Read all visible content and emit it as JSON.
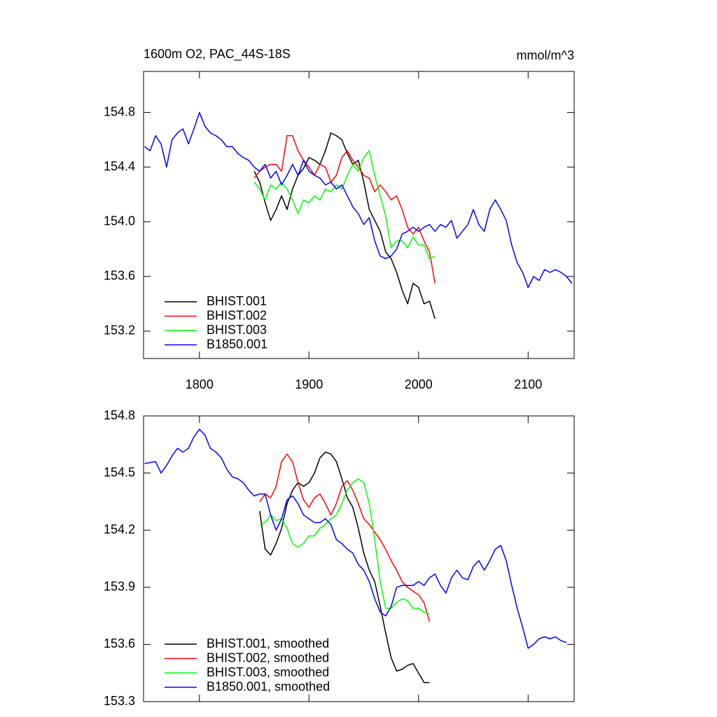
{
  "chart_data": [
    {
      "type": "line",
      "title": "1600m O2, PAC_44S-18S",
      "subtitle": "mmol/m^3",
      "xlim": [
        1749,
        2142
      ],
      "xticks": [
        1800,
        1900,
        2000,
        2100
      ],
      "ylim": [
        153.0,
        155.1
      ],
      "yticks": [
        153.2,
        153.6,
        {
          "value": 154,
          "label": "154.0"
        },
        154.4,
        154.8
      ],
      "legend": "lower left",
      "series": [
        {
          "name": "BHIST.001",
          "color": "#000000",
          "x": [
            1850,
            1855,
            1860,
            1865,
            1870,
            1875,
            1880,
            1885,
            1890,
            1895,
            1900,
            1905,
            1910,
            1915,
            1920,
            1925,
            1930,
            1935,
            1940,
            1945,
            1950,
            1955,
            1960,
            1965,
            1970,
            1975,
            1980,
            1985,
            1990,
            1995,
            2000,
            2005,
            2010,
            2015
          ],
          "values": [
            154.37,
            154.29,
            154.14,
            154.01,
            154.09,
            154.19,
            154.09,
            154.24,
            154.34,
            154.39,
            154.47,
            154.45,
            154.42,
            154.52,
            154.65,
            154.63,
            154.6,
            154.5,
            154.42,
            154.45,
            154.29,
            154.09,
            154.01,
            153.93,
            153.78,
            153.73,
            153.63,
            153.5,
            153.4,
            153.55,
            153.52,
            153.4,
            153.42,
            153.29
          ]
        },
        {
          "name": "BHIST.002",
          "color": "#ff0000",
          "x": [
            1850,
            1855,
            1860,
            1865,
            1870,
            1875,
            1880,
            1885,
            1890,
            1895,
            1900,
            1905,
            1910,
            1915,
            1920,
            1925,
            1930,
            1935,
            1940,
            1945,
            1950,
            1955,
            1960,
            1965,
            1970,
            1975,
            1980,
            1985,
            1990,
            1995,
            2000,
            2005,
            2010,
            2015
          ],
          "values": [
            154.32,
            154.37,
            154.4,
            154.42,
            154.42,
            154.37,
            154.63,
            154.63,
            154.52,
            154.45,
            154.4,
            154.34,
            154.42,
            154.4,
            154.29,
            154.34,
            154.47,
            154.52,
            154.45,
            154.4,
            154.34,
            154.32,
            154.22,
            154.27,
            154.22,
            154.16,
            154.19,
            154.09,
            153.96,
            153.91,
            153.96,
            153.86,
            153.78,
            153.55
          ]
        },
        {
          "name": "BHIST.003",
          "color": "#00ff00",
          "x": [
            1850,
            1855,
            1860,
            1865,
            1870,
            1875,
            1880,
            1885,
            1890,
            1895,
            1900,
            1905,
            1910,
            1915,
            1920,
            1925,
            1930,
            1935,
            1940,
            1945,
            1950,
            1955,
            1960,
            1965,
            1970,
            1975,
            1980,
            1985,
            1990,
            1995,
            2000,
            2005,
            2010,
            2015
          ],
          "values": [
            154.29,
            154.24,
            154.16,
            154.27,
            154.24,
            154.29,
            154.24,
            154.16,
            154.06,
            154.16,
            154.14,
            154.19,
            154.16,
            154.24,
            154.22,
            154.27,
            154.24,
            154.34,
            154.42,
            154.37,
            154.47,
            154.52,
            154.34,
            154.19,
            154.04,
            153.81,
            153.86,
            153.86,
            153.81,
            153.89,
            153.83,
            153.83,
            153.73,
            153.75
          ]
        },
        {
          "name": "B1850.001",
          "color": "#0000ff",
          "x": [
            1750,
            1755,
            1760,
            1765,
            1770,
            1775,
            1780,
            1785,
            1790,
            1795,
            1800,
            1805,
            1810,
            1815,
            1820,
            1825,
            1830,
            1835,
            1840,
            1845,
            1850,
            1855,
            1860,
            1865,
            1870,
            1875,
            1880,
            1885,
            1890,
            1895,
            1900,
            1905,
            1910,
            1915,
            1920,
            1925,
            1930,
            1935,
            1940,
            1945,
            1950,
            1955,
            1960,
            1965,
            1970,
            1975,
            1980,
            1985,
            1990,
            1995,
            2000,
            2005,
            2010,
            2015,
            2020,
            2025,
            2030,
            2035,
            2040,
            2045,
            2050,
            2055,
            2060,
            2065,
            2070,
            2075,
            2080,
            2085,
            2090,
            2095,
            2100,
            2105,
            2110,
            2115,
            2120,
            2125,
            2130,
            2135,
            2140
          ],
          "values": [
            154.55,
            154.52,
            154.63,
            154.57,
            154.4,
            154.6,
            154.65,
            154.68,
            154.57,
            154.68,
            154.8,
            154.7,
            154.65,
            154.63,
            154.6,
            154.55,
            154.55,
            154.5,
            154.47,
            154.45,
            154.4,
            154.37,
            154.42,
            154.32,
            154.37,
            154.27,
            154.34,
            154.42,
            154.34,
            154.45,
            154.37,
            154.34,
            154.32,
            154.27,
            154.29,
            154.24,
            154.27,
            154.19,
            154.11,
            154.06,
            153.98,
            154.03,
            153.86,
            153.75,
            153.73,
            153.75,
            153.8,
            153.91,
            153.93,
            153.96,
            153.93,
            153.96,
            153.98,
            153.93,
            153.98,
            153.96,
            154.01,
            153.88,
            153.93,
            153.98,
            154.09,
            153.98,
            153.93,
            154.09,
            154.16,
            154.09,
            154.01,
            153.83,
            153.7,
            153.63,
            153.52,
            153.6,
            153.57,
            153.65,
            153.63,
            153.65,
            153.63,
            153.6,
            153.55
          ]
        }
      ]
    },
    {
      "type": "line",
      "xlim": [
        1749,
        2142
      ],
      "ylim": [
        153.3,
        154.8
      ],
      "yticks": [
        153.3,
        153.6,
        153.9,
        154.2,
        154.5,
        154.8
      ],
      "legend": "lower left",
      "series": [
        {
          "name": "BHIST.001, smoothed",
          "color": "#000000",
          "x": [
            1855,
            1860,
            1865,
            1870,
            1875,
            1880,
            1885,
            1890,
            1895,
            1900,
            1905,
            1910,
            1915,
            1920,
            1925,
            1930,
            1935,
            1940,
            1945,
            1950,
            1955,
            1960,
            1965,
            1970,
            1975,
            1980,
            1985,
            1990,
            1995,
            2000,
            2005,
            2010
          ],
          "values": [
            154.3,
            154.1,
            154.07,
            154.13,
            154.21,
            154.34,
            154.41,
            154.45,
            154.43,
            154.45,
            154.5,
            154.58,
            154.61,
            154.6,
            154.56,
            154.47,
            154.37,
            154.32,
            154.21,
            154.08,
            153.99,
            153.93,
            153.8,
            153.66,
            153.53,
            153.46,
            153.47,
            153.49,
            153.5,
            153.45,
            153.4,
            153.4
          ]
        },
        {
          "name": "BHIST.002, smoothed",
          "color": "#ff0000",
          "x": [
            1855,
            1860,
            1865,
            1870,
            1875,
            1880,
            1885,
            1890,
            1895,
            1900,
            1905,
            1910,
            1915,
            1920,
            1925,
            1930,
            1935,
            1940,
            1945,
            1950,
            1955,
            1960,
            1965,
            1970,
            1975,
            1980,
            1985,
            1990,
            1995,
            2000,
            2005,
            2010
          ],
          "values": [
            154.35,
            154.39,
            154.37,
            154.43,
            154.56,
            154.6,
            154.56,
            154.45,
            154.36,
            154.32,
            154.37,
            154.39,
            154.34,
            154.28,
            154.34,
            154.43,
            154.46,
            154.41,
            154.34,
            154.26,
            154.23,
            154.19,
            154.15,
            154.1,
            154.04,
            153.99,
            153.93,
            153.9,
            153.88,
            153.86,
            153.82,
            153.72
          ]
        },
        {
          "name": "BHIST.003, smoothed",
          "color": "#00ff00",
          "x": [
            1855,
            1860,
            1865,
            1870,
            1875,
            1880,
            1885,
            1890,
            1895,
            1900,
            1905,
            1910,
            1915,
            1920,
            1925,
            1930,
            1935,
            1940,
            1945,
            1950,
            1955,
            1960,
            1965,
            1970,
            1975,
            1980,
            1985,
            1990,
            1995,
            2000,
            2005,
            2010
          ],
          "values": [
            154.23,
            154.24,
            154.28,
            154.25,
            154.26,
            154.21,
            154.13,
            154.11,
            154.13,
            154.17,
            154.17,
            154.21,
            154.23,
            154.26,
            154.28,
            154.34,
            154.41,
            154.45,
            154.47,
            154.45,
            154.34,
            154.15,
            153.93,
            153.79,
            153.79,
            153.82,
            153.84,
            153.83,
            153.79,
            153.79,
            153.77,
            153.76
          ]
        },
        {
          "name": "B1850.001, smoothed",
          "color": "#0000ff",
          "x": [
            1750,
            1760,
            1765,
            1770,
            1775,
            1780,
            1785,
            1790,
            1795,
            1800,
            1805,
            1810,
            1815,
            1820,
            1825,
            1830,
            1835,
            1840,
            1845,
            1850,
            1855,
            1860,
            1865,
            1870,
            1875,
            1880,
            1885,
            1890,
            1895,
            1900,
            1905,
            1910,
            1915,
            1920,
            1925,
            1930,
            1935,
            1940,
            1945,
            1950,
            1955,
            1960,
            1965,
            1970,
            1975,
            1980,
            1985,
            1990,
            1995,
            2000,
            2005,
            2010,
            2015,
            2020,
            2025,
            2030,
            2035,
            2040,
            2045,
            2050,
            2055,
            2060,
            2065,
            2070,
            2075,
            2080,
            2085,
            2090,
            2095,
            2100,
            2105,
            2110,
            2115,
            2120,
            2125,
            2130,
            2135
          ],
          "values": [
            154.55,
            154.56,
            154.5,
            154.54,
            154.59,
            154.63,
            154.61,
            154.63,
            154.69,
            154.73,
            154.7,
            154.63,
            154.61,
            154.58,
            154.52,
            154.48,
            154.47,
            154.45,
            154.41,
            154.38,
            154.39,
            154.39,
            154.28,
            154.2,
            154.26,
            154.36,
            154.38,
            154.34,
            154.28,
            154.26,
            154.24,
            154.24,
            154.26,
            154.23,
            154.15,
            154.13,
            154.1,
            154.08,
            154.02,
            153.99,
            153.93,
            153.84,
            153.77,
            153.75,
            153.8,
            153.9,
            153.91,
            153.91,
            153.91,
            153.93,
            153.91,
            153.95,
            153.97,
            153.91,
            153.87,
            153.95,
            153.99,
            153.95,
            153.94,
            154.01,
            154.04,
            153.99,
            154.04,
            154.1,
            154.12,
            154.04,
            153.91,
            153.79,
            153.69,
            153.58,
            153.6,
            153.63,
            153.64,
            153.63,
            153.64,
            153.62,
            153.61
          ]
        }
      ]
    }
  ]
}
